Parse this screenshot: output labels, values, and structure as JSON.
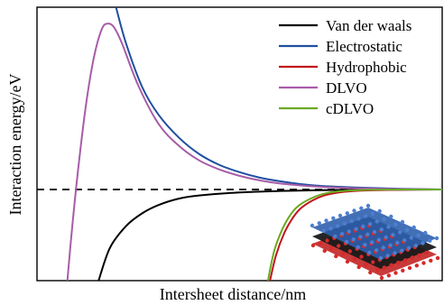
{
  "chart_data": {
    "type": "line",
    "xlabel": "Intersheet distance/nm",
    "ylabel": "Interaction energy/eV",
    "grid": false,
    "legend_position": "top-right",
    "xlim": [
      0,
      10
    ],
    "ylim": [
      -5,
      10
    ],
    "baseline": 0,
    "series": [
      {
        "name": "Van der waals",
        "color": "#000000",
        "x": [
          1.52,
          1.8,
          2.2,
          2.6,
          3.0,
          3.5,
          4.0,
          5.0,
          6.0,
          7.0,
          8.0,
          9.0,
          10.0
        ],
        "y": [
          -5.0,
          -3.2,
          -2.0,
          -1.3,
          -0.85,
          -0.5,
          -0.33,
          -0.16,
          -0.08,
          -0.04,
          -0.02,
          -0.01,
          0.0
        ]
      },
      {
        "name": "Electrostatic",
        "color": "#1f4fa0",
        "x": [
          1.95,
          2.2,
          2.6,
          3.0,
          3.5,
          4.0,
          4.5,
          5.0,
          5.5,
          6.0,
          6.5,
          7.0,
          8.0,
          9.0,
          10.0
        ],
        "y": [
          10.0,
          8.0,
          5.6,
          4.1,
          2.85,
          1.95,
          1.35,
          0.95,
          0.65,
          0.45,
          0.3,
          0.2,
          0.1,
          0.04,
          0.0
        ]
      },
      {
        "name": "Hydrophobic",
        "color": "#c0141c",
        "x": [
          5.75,
          5.9,
          6.1,
          6.3,
          6.5,
          6.8,
          7.1,
          7.5,
          8.0,
          9.0,
          10.0
        ],
        "y": [
          -5.0,
          -3.6,
          -2.4,
          -1.6,
          -1.05,
          -0.6,
          -0.32,
          -0.15,
          -0.06,
          -0.01,
          0.0
        ]
      },
      {
        "name": "DLVO",
        "color": "#a85ca8",
        "x": [
          0.75,
          0.85,
          1.0,
          1.2,
          1.4,
          1.6,
          1.75,
          1.9,
          2.1,
          2.5,
          3.0,
          3.5,
          4.0,
          4.5,
          5.0,
          5.5,
          6.0,
          7.0,
          8.0,
          9.0,
          10.0
        ],
        "y": [
          -5.0,
          -2.5,
          0.8,
          4.5,
          7.2,
          8.8,
          9.1,
          8.9,
          8.0,
          5.7,
          3.6,
          2.4,
          1.6,
          1.1,
          0.75,
          0.5,
          0.33,
          0.15,
          0.06,
          0.02,
          0.0
        ]
      },
      {
        "name": "cDLVO",
        "color": "#6aaa22",
        "x": [
          5.7,
          5.85,
          6.05,
          6.25,
          6.45,
          6.75,
          7.05,
          7.45,
          8.0,
          9.0,
          10.0
        ],
        "y": [
          -5.0,
          -3.4,
          -2.2,
          -1.4,
          -0.9,
          -0.5,
          -0.25,
          -0.1,
          -0.03,
          0.0,
          0.0
        ]
      }
    ]
  },
  "inset": {
    "icon": "layered-nanosheet-icon",
    "top_color": "#2f5fae",
    "bottom_color": "#c01818"
  }
}
